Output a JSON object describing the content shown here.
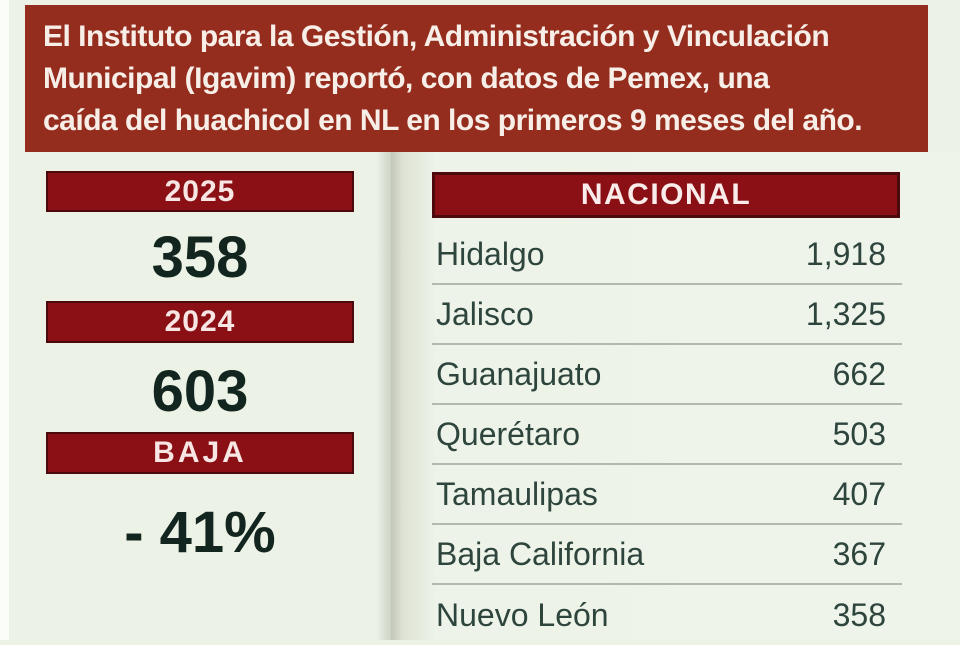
{
  "banner": {
    "lines": [
      "El Instituto para la Gestión, Administración y Vinculación",
      "Municipal (Igavim) reportó, con datos de Pemex, una",
      "caída del huachicol en NL en los primeros 9 meses del año."
    ]
  },
  "left_panel": {
    "items": [
      {
        "label": "2025",
        "value": "358"
      },
      {
        "label": "2024",
        "value": "603"
      },
      {
        "label": "BAJA",
        "value": "- 41%"
      }
    ]
  },
  "table": {
    "title": "NACIONAL",
    "rows": [
      {
        "name": "Hidalgo",
        "value": "1,918"
      },
      {
        "name": "Jalisco",
        "value": "1,325"
      },
      {
        "name": "Guanajuato",
        "value": "662"
      },
      {
        "name": "Querétaro",
        "value": "503"
      },
      {
        "name": "Tamaulipas",
        "value": "407"
      },
      {
        "name": "Baja California",
        "value": "367"
      },
      {
        "name": "Nuevo León",
        "value": "358"
      }
    ]
  },
  "colors": {
    "banner_red": "#952d1f",
    "bar_crimson": "#8a1015",
    "bar_border": "#4c0a0c",
    "dark_value_text": "#13251f",
    "row_text": "#2e453d",
    "separator": "#b2bab0",
    "background": "#ecf2e6"
  },
  "chart_data": [
    {
      "type": "table",
      "title": "",
      "categories": [
        "2025",
        "2024"
      ],
      "values": [
        358,
        603
      ],
      "annotations": [
        "BAJA - 41%"
      ]
    },
    {
      "type": "table",
      "title": "NACIONAL",
      "categories": [
        "Hidalgo",
        "Jalisco",
        "Guanajuato",
        "Querétaro",
        "Tamaulipas",
        "Baja California",
        "Nuevo León"
      ],
      "values": [
        1918,
        1325,
        662,
        503,
        407,
        367,
        358
      ]
    }
  ]
}
